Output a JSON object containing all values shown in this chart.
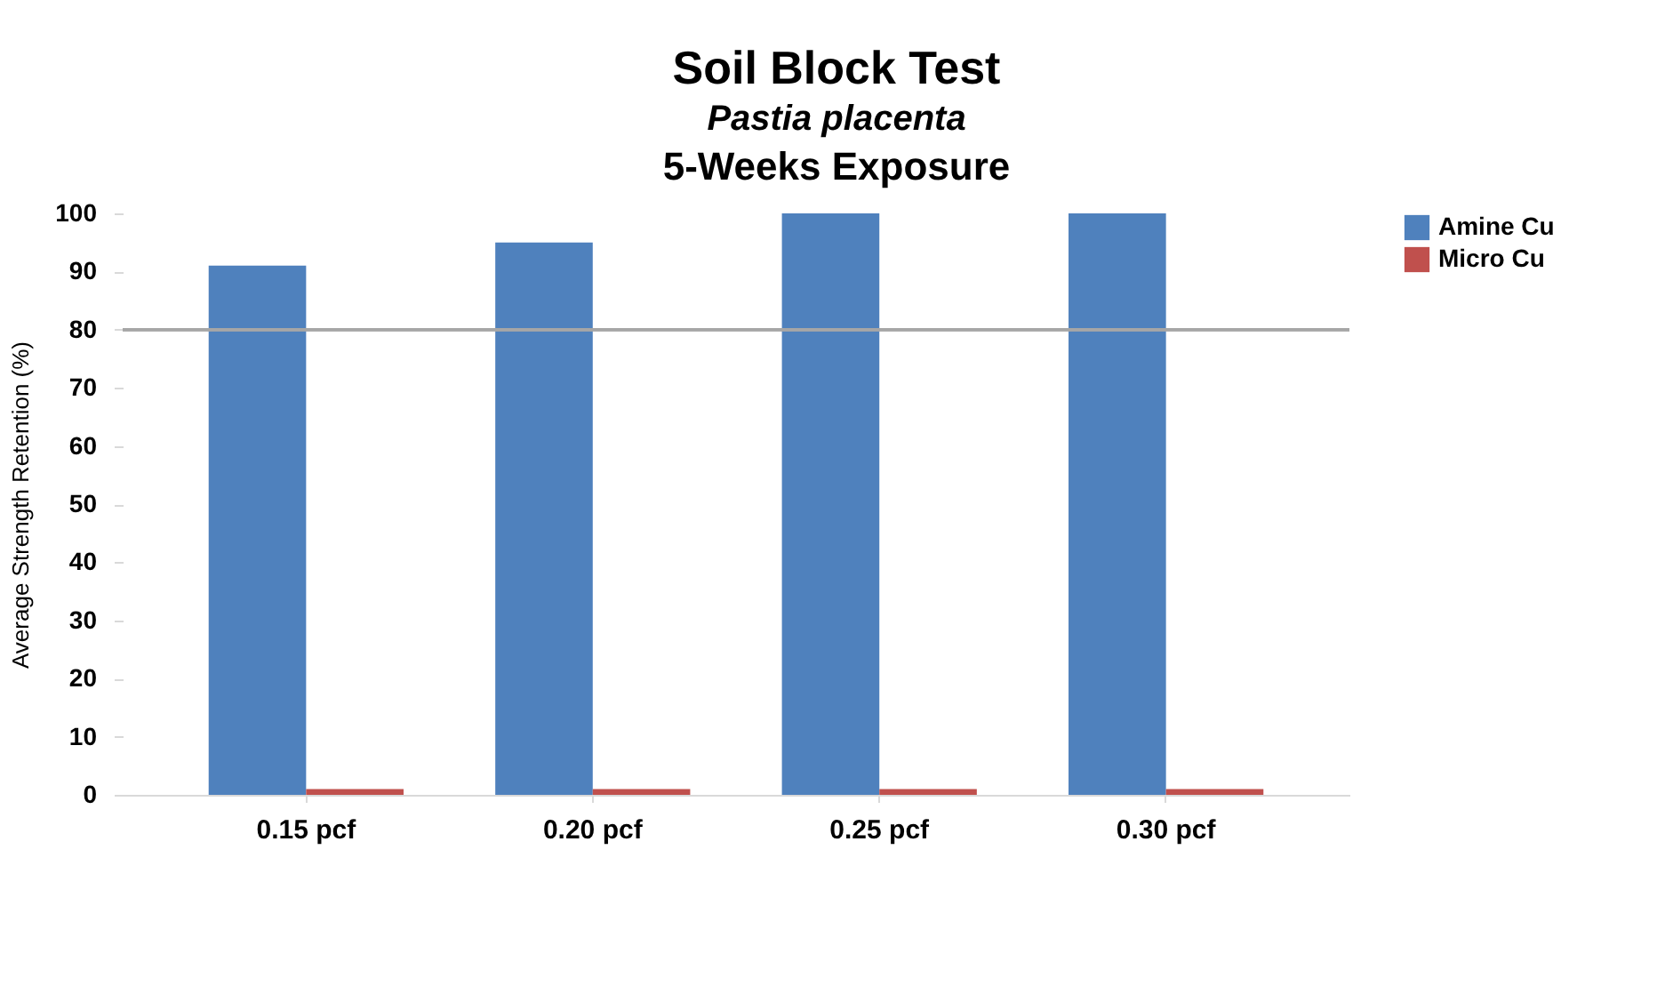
{
  "chart_data": {
    "type": "bar",
    "title": "Soil Block Test",
    "subtitle": "Pastia placenta",
    "annotations": [
      "5-Weeks Exposure"
    ],
    "ylabel": "Average Strength Retention (%)",
    "categories": [
      "0.15 pcf",
      "0.20 pcf",
      "0.25 pcf",
      "0.30 pcf"
    ],
    "series": [
      {
        "name": "Amine Cu",
        "color": "#4f81bd",
        "values": [
          91,
          95,
          100,
          100
        ]
      },
      {
        "name": "Micro Cu",
        "color": "#c0504d",
        "values": [
          1,
          1,
          1,
          1
        ]
      }
    ],
    "ylim": [
      0,
      100
    ],
    "yticks": [
      0,
      10,
      20,
      30,
      40,
      50,
      60,
      70,
      80,
      90,
      100
    ],
    "ref_lines": [
      {
        "axis": "y",
        "value": 80,
        "color": "#a6a6a6"
      }
    ],
    "grid": false,
    "legend": "right"
  }
}
